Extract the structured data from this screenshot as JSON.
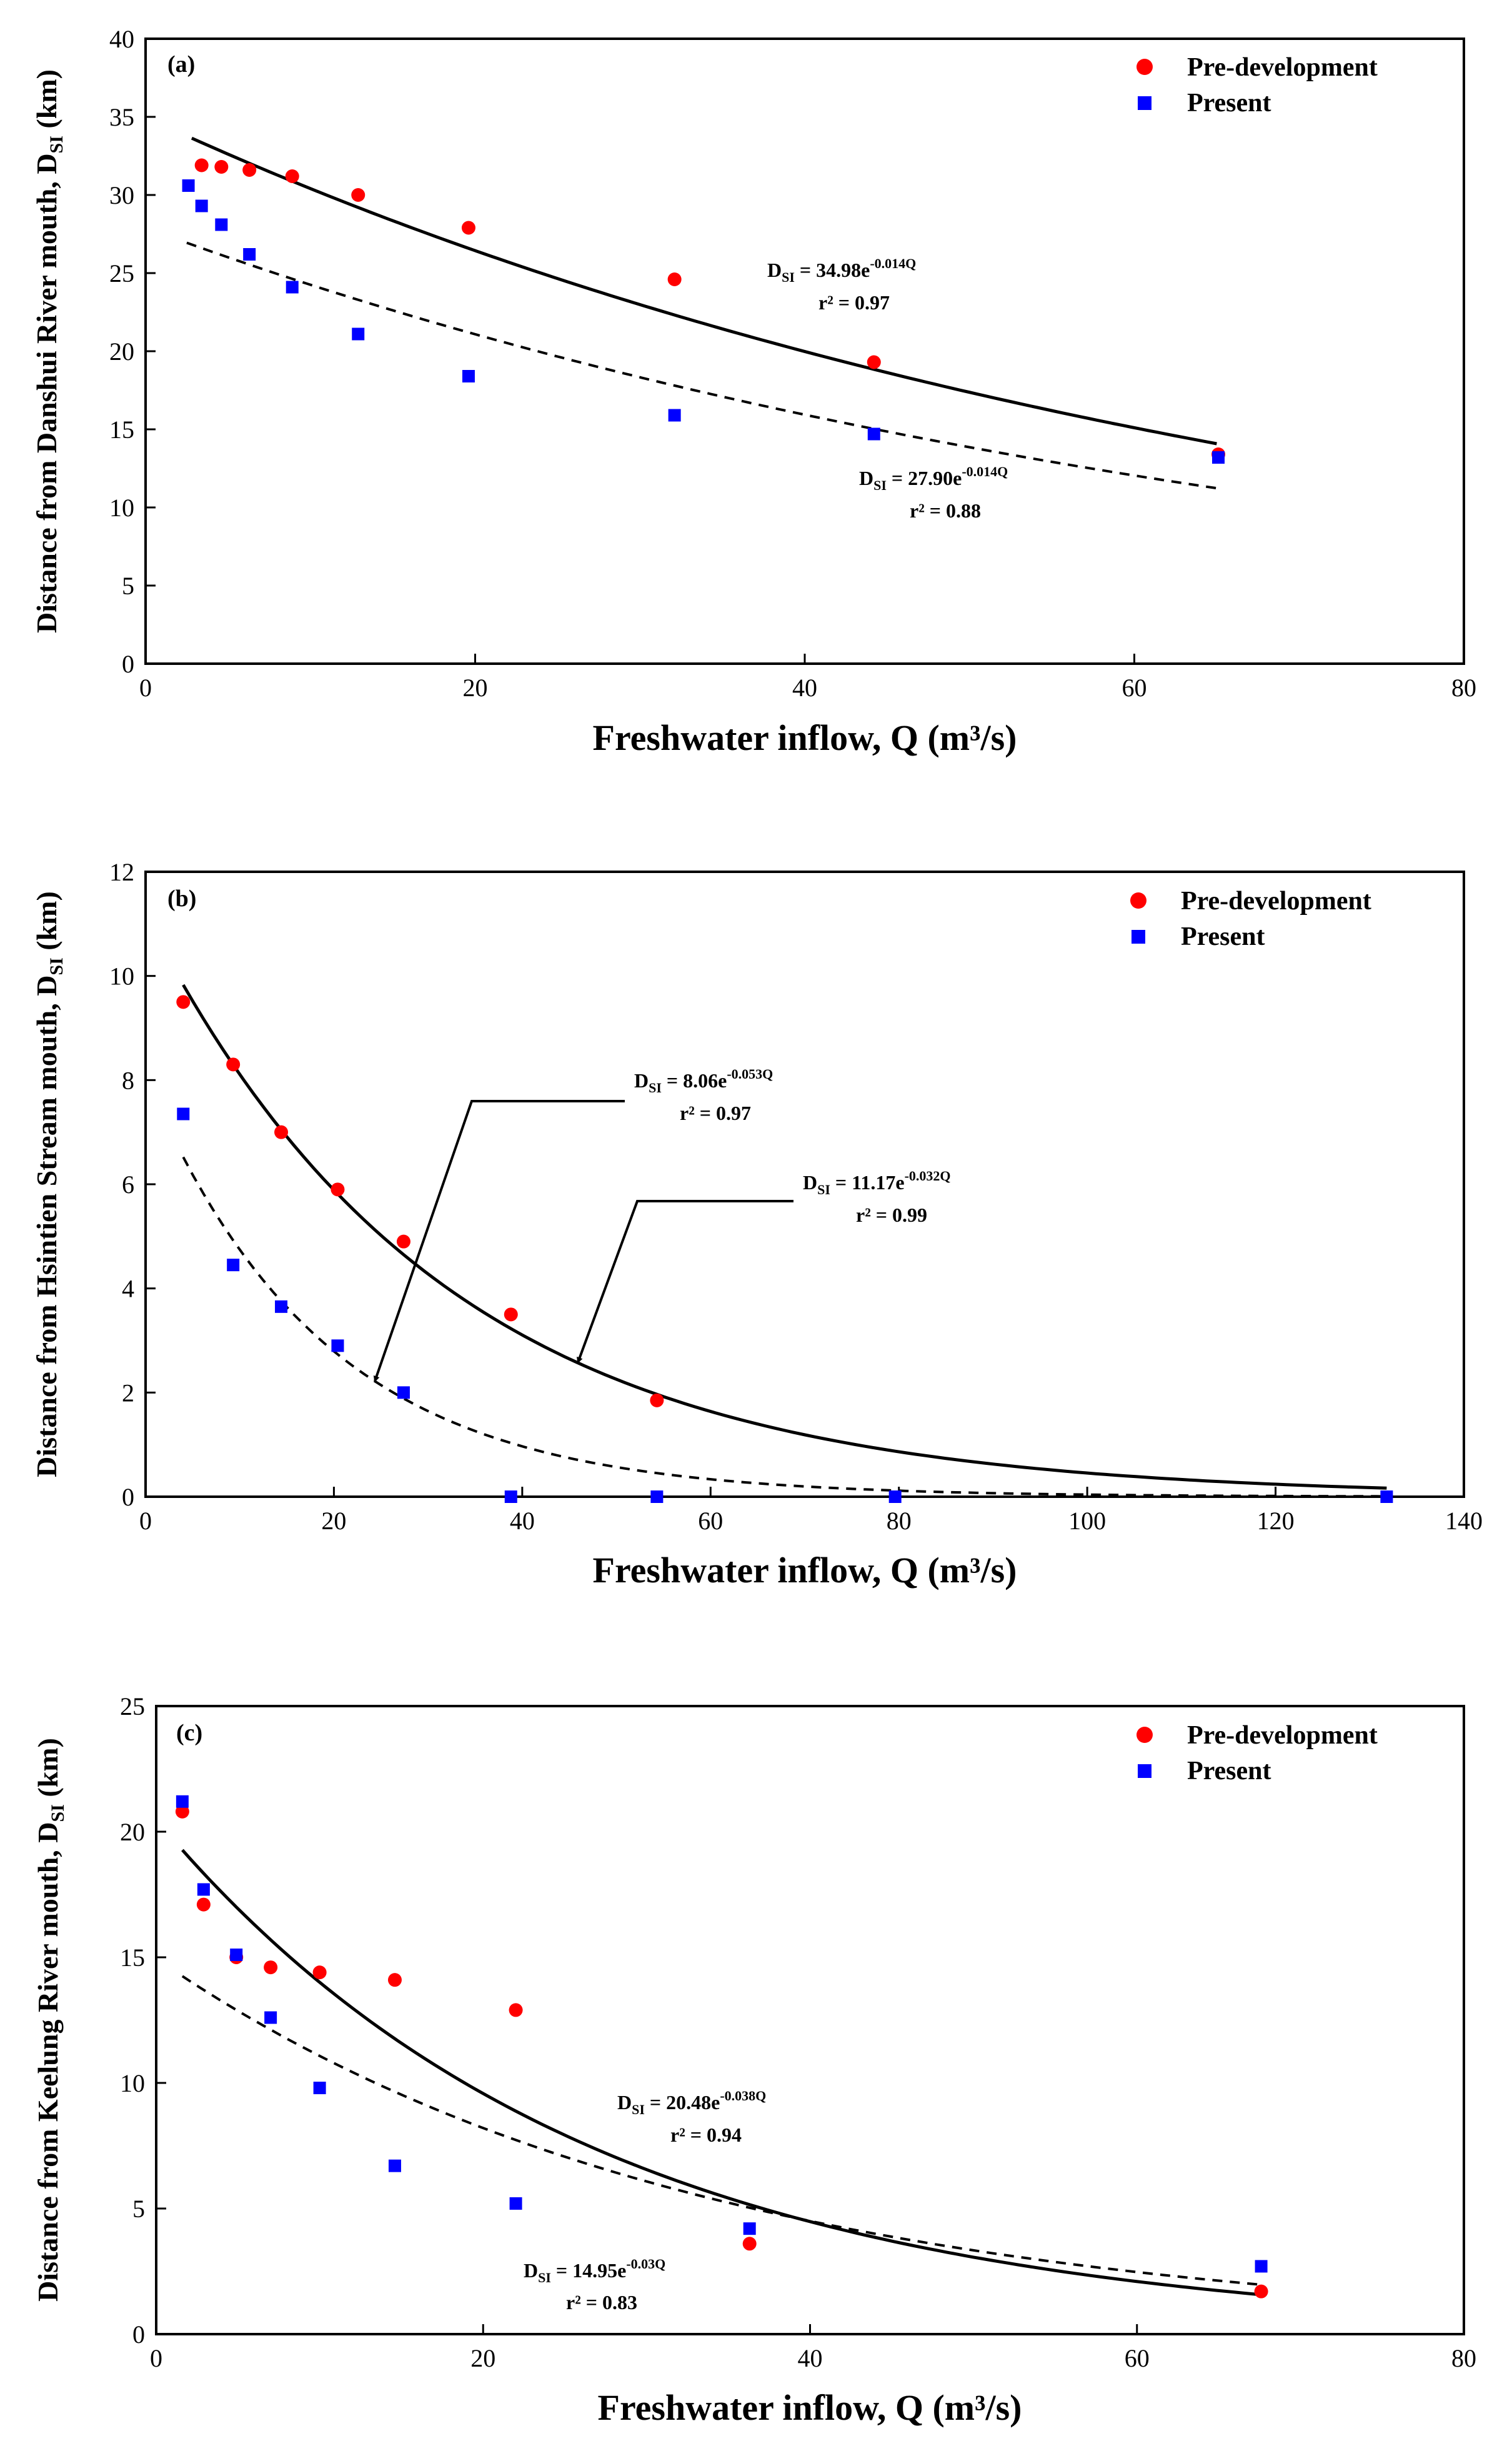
{
  "chart_data": [
    {
      "type": "scatter",
      "panel_label": "(a)",
      "xlabel": "Freshwater inflow, Q (m³/s)",
      "ylabel": "Distance from Danshui River mouth, D",
      "ylabel_sub": "SI",
      "ylabel_tail": " (km)",
      "xlim": [
        0,
        80
      ],
      "ylim": [
        0,
        40
      ],
      "xticks": [
        0,
        20,
        40,
        60,
        80
      ],
      "yticks": [
        0,
        5,
        10,
        15,
        20,
        25,
        30,
        35,
        40
      ],
      "legend_position": "top-right",
      "series": [
        {
          "name": "Pre-development",
          "marker": "circle",
          "color": "#ff0000",
          "x": [
            3.4,
            4.6,
            6.3,
            8.9,
            12.9,
            19.6,
            32.1,
            44.2,
            65.1
          ],
          "y": [
            31.9,
            31.8,
            31.6,
            31.2,
            30.0,
            27.9,
            24.6,
            19.3,
            13.4
          ]
        },
        {
          "name": "Present",
          "marker": "square",
          "color": "#0000ff",
          "x": [
            2.6,
            3.4,
            4.6,
            6.3,
            8.9,
            12.9,
            19.6,
            32.1,
            44.2,
            65.1
          ],
          "y": [
            30.6,
            29.3,
            28.1,
            26.2,
            24.1,
            21.1,
            18.4,
            15.9,
            14.7,
            13.2
          ]
        }
      ],
      "fits": [
        {
          "a": 34.98,
          "b": 0.014,
          "x_range": [
            2.8,
            65.0
          ],
          "style": "solid"
        },
        {
          "a": 27.9,
          "b": 0.014,
          "x_range": [
            2.5,
            65.0
          ],
          "style": "dashed"
        }
      ],
      "annotations": [
        {
          "prefix": "D",
          "sub": "SI",
          "mid": " = 34.98e",
          "sup": "-0.014Q",
          "r2": "r² = 0.97"
        },
        {
          "prefix": "D",
          "sub": "SI",
          "mid": " = 27.90e",
          "sup": "-0.014Q",
          "r2": "r² = 0.88"
        }
      ]
    },
    {
      "type": "scatter",
      "panel_label": "(b)",
      "xlabel": "Freshwater inflow, Q (m³/s)",
      "ylabel": "Distance from Hsintien Stream mouth, D",
      "ylabel_sub": "SI",
      "ylabel_tail": " (km)",
      "xlim": [
        0,
        140
      ],
      "ylim": [
        0,
        12
      ],
      "xticks": [
        0,
        20,
        40,
        60,
        80,
        100,
        120,
        140
      ],
      "yticks": [
        0,
        2,
        4,
        6,
        8,
        10,
        12
      ],
      "legend_position": "top-right",
      "series": [
        {
          "name": "Pre-development",
          "marker": "circle",
          "color": "#ff0000",
          "x": [
            4.0,
            9.3,
            14.4,
            20.4,
            27.4,
            38.8,
            54.3
          ],
          "y": [
            9.5,
            8.3,
            7.0,
            5.9,
            4.9,
            3.5,
            1.85
          ]
        },
        {
          "name": "Present",
          "marker": "square",
          "color": "#0000ff",
          "x": [
            4.0,
            9.3,
            14.4,
            20.4,
            27.4,
            38.8,
            54.3,
            79.6,
            131.8
          ],
          "y": [
            7.35,
            4.45,
            3.65,
            2.9,
            2.0,
            0.0,
            0.0,
            0.0,
            0.0
          ]
        }
      ],
      "fits": [
        {
          "a": 11.17,
          "b": 0.032,
          "x_range": [
            4.0,
            131.8
          ],
          "style": "solid"
        },
        {
          "a": 8.06,
          "b": 0.053,
          "x_range": [
            4.0,
            131.8
          ],
          "style": "dashed"
        }
      ],
      "annotations": [
        {
          "prefix": "D",
          "sub": "SI",
          "mid": " = 8.06e",
          "sup": "-0.053Q",
          "r2": "r² = 0.97"
        },
        {
          "prefix": "D",
          "sub": "SI",
          "mid": " = 11.17e",
          "sup": "-0.032Q",
          "r2": "r² = 0.99"
        }
      ]
    },
    {
      "type": "scatter",
      "panel_label": "(c)",
      "xlabel": "Freshwater inflow, Q (m³/s)",
      "ylabel": "Distance from Keelung River mouth, D",
      "ylabel_sub": "SI",
      "ylabel_tail": " (km)",
      "xlim": [
        0,
        80
      ],
      "ylim": [
        0,
        25
      ],
      "xticks": [
        0,
        20,
        40,
        60,
        80
      ],
      "yticks": [
        0,
        5,
        10,
        15,
        20,
        25
      ],
      "legend_position": "top-right",
      "series": [
        {
          "name": "Pre-development",
          "marker": "circle",
          "color": "#ff0000",
          "x": [
            1.6,
            2.9,
            4.9,
            7.0,
            10.0,
            14.6,
            22.0,
            36.3,
            67.6
          ],
          "y": [
            20.8,
            17.1,
            15.0,
            14.6,
            14.4,
            14.1,
            12.9,
            3.6,
            1.7
          ]
        },
        {
          "name": "Present",
          "marker": "square",
          "color": "#0000ff",
          "x": [
            1.6,
            2.9,
            4.9,
            7.0,
            10.0,
            14.6,
            22.0,
            36.3,
            67.6
          ],
          "y": [
            21.2,
            17.7,
            15.1,
            12.6,
            9.8,
            6.7,
            5.2,
            4.2,
            2.7
          ]
        }
      ],
      "fits": [
        {
          "a": 20.48,
          "b": 0.038,
          "x_range": [
            1.6,
            67.6
          ],
          "style": "solid"
        },
        {
          "a": 14.95,
          "b": 0.03,
          "x_range": [
            1.6,
            67.6
          ],
          "style": "dashed"
        }
      ],
      "annotations": [
        {
          "prefix": "D",
          "sub": "SI",
          "mid": " = 20.48e",
          "sup": "-0.038Q",
          "r2": "r² = 0.94"
        },
        {
          "prefix": "D",
          "sub": "SI",
          "mid": " = 14.95e",
          "sup": "-0.03Q",
          "r2": "r² = 0.83"
        }
      ]
    }
  ]
}
